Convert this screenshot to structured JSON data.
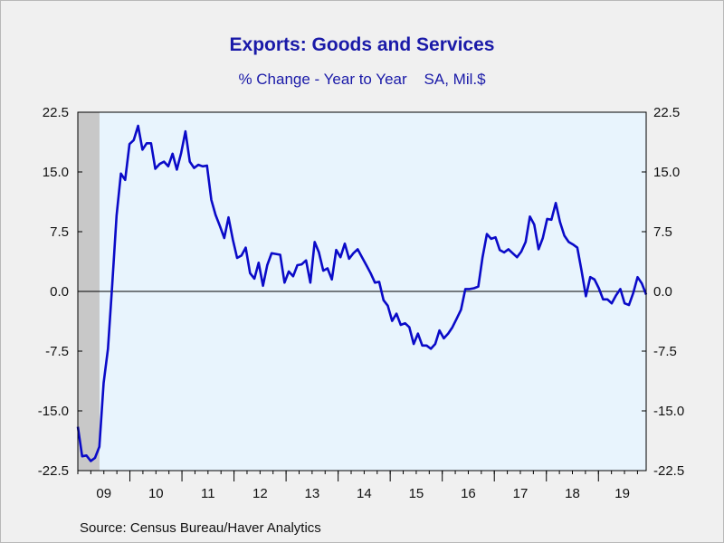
{
  "chart_data": {
    "type": "line",
    "title": "Exports: Goods and Services",
    "subtitle": "% Change - Year to Year    SA, Mil.$",
    "source": "Source:  Census Bureau/Haver Analytics",
    "xlabel": "",
    "ylabel": "",
    "ylim": [
      -22.5,
      22.5
    ],
    "yticks": [
      "22.5",
      "15.0",
      "7.5",
      "0.0",
      "-7.5",
      "-15.0",
      "-22.5"
    ],
    "ytick_values": [
      22.5,
      15.0,
      7.5,
      0.0,
      -7.5,
      -15.0,
      -22.5
    ],
    "xlim": [
      2009.0,
      2019.9167
    ],
    "x_tick_labels": [
      "09",
      "10",
      "11",
      "12",
      "13",
      "14",
      "15",
      "16",
      "17",
      "18",
      "19"
    ],
    "x_tick_years": [
      2009,
      2010,
      2011,
      2012,
      2013,
      2014,
      2015,
      2016,
      2017,
      2018,
      2019
    ],
    "recession_shading": [
      2009.0,
      2009.4167
    ],
    "zero_line": true,
    "grid": false,
    "line_color": "#0a0ac8",
    "plot_background": "#e8f4fd",
    "shade_color": "#c8c8c8",
    "series": [
      {
        "values": [
          -17.0,
          -20.7,
          -20.6,
          -21.3,
          -20.9,
          -19.5,
          -11.5,
          -7.2,
          1.0,
          9.5,
          14.8,
          14.0,
          18.5,
          19.0,
          20.8,
          17.8,
          18.6,
          18.6,
          15.4,
          16.0,
          16.3,
          15.7,
          17.3,
          15.3,
          17.4,
          20.1,
          16.3,
          15.5,
          15.9,
          15.7,
          15.8,
          11.5,
          9.6,
          8.2,
          6.7,
          9.3,
          6.5,
          4.2,
          4.5,
          5.5,
          2.3,
          1.6,
          3.6,
          0.7,
          3.3,
          4.8,
          4.7,
          4.6,
          1.1,
          2.5,
          1.9,
          3.3,
          3.4,
          3.9,
          1.1,
          6.2,
          4.9,
          2.6,
          2.9,
          1.5,
          5.2,
          4.3,
          6.0,
          4.1,
          4.8,
          5.3,
          4.3,
          3.3,
          2.3,
          1.1,
          1.2,
          -1.1,
          -1.8,
          -3.7,
          -2.8,
          -4.2,
          -4.0,
          -4.5,
          -6.6,
          -5.3,
          -6.8,
          -6.8,
          -7.2,
          -6.6,
          -4.9,
          -5.9,
          -5.3,
          -4.5,
          -3.4,
          -2.3,
          0.3,
          0.3,
          0.4,
          0.6,
          4.3,
          7.2,
          6.6,
          6.8,
          5.2,
          4.9,
          5.3,
          4.8,
          4.3,
          5.0,
          6.2,
          9.4,
          8.4,
          5.3,
          6.7,
          9.1,
          9.0,
          11.1,
          8.7,
          7.0,
          6.2,
          5.9,
          5.5,
          2.6,
          -0.6,
          1.8,
          1.5,
          0.4,
          -1.0,
          -1.0,
          -1.5,
          -0.5,
          0.3,
          -1.5,
          -1.7,
          -0.2,
          1.8,
          1.0,
          -0.4
        ]
      }
    ]
  }
}
